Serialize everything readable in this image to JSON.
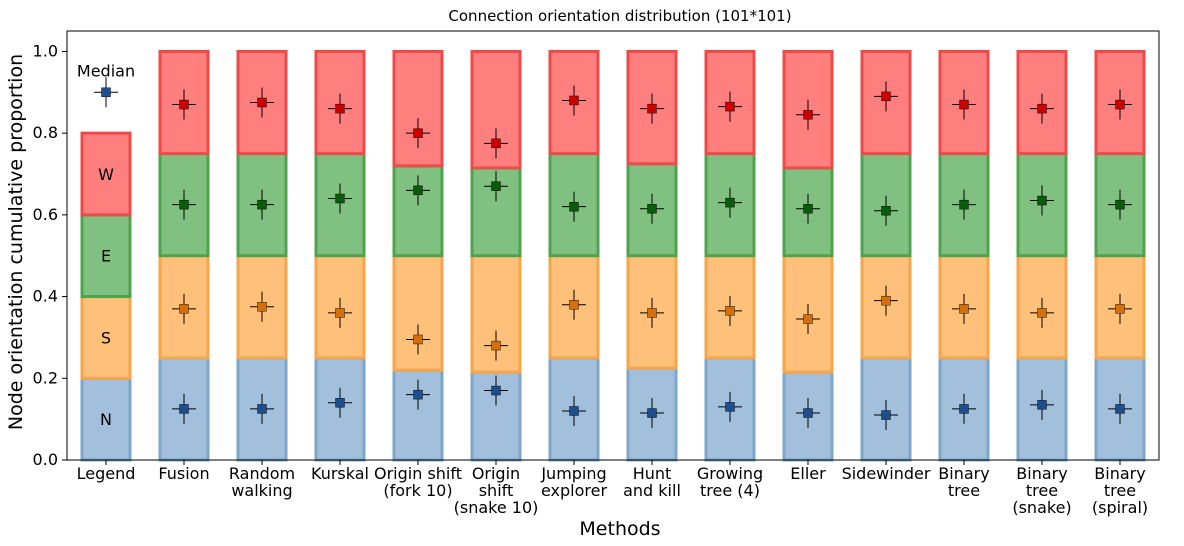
{
  "chart_data": {
    "type": "bar",
    "title": "Connection orientation distribution (101*101)",
    "xlabel": "Methods",
    "ylabel": "Node orientation cumulative proportion",
    "ylim": [
      0,
      1.05
    ],
    "yticks": [
      "0.0",
      "0.2",
      "0.4",
      "0.6",
      "0.8",
      "1.0"
    ],
    "stacked": true,
    "legend_column": {
      "category": "Legend",
      "median_label": "Median",
      "median_y": 0.9,
      "segments": [
        {
          "name": "N",
          "bottom": 0.0,
          "top": 0.2
        },
        {
          "name": "S",
          "bottom": 0.2,
          "top": 0.4
        },
        {
          "name": "E",
          "bottom": 0.4,
          "top": 0.6
        },
        {
          "name": "W",
          "bottom": 0.6,
          "top": 0.8
        }
      ]
    },
    "categories": [
      [
        "Fusion"
      ],
      [
        "Random",
        "walking"
      ],
      [
        "Kurskal"
      ],
      [
        "Origin shift",
        "(fork 10)"
      ],
      [
        "Origin",
        "shift",
        "(snake 10)"
      ],
      [
        "Jumping",
        "explorer"
      ],
      [
        "Hunt",
        "and kill"
      ],
      [
        "Growing",
        "tree (4)"
      ],
      [
        "Eller"
      ],
      [
        "Sidewinder"
      ],
      [
        "Binary",
        "tree"
      ],
      [
        "Binary",
        "tree",
        "(snake)"
      ],
      [
        "Binary",
        "tree",
        "(spiral)"
      ]
    ],
    "series": [
      {
        "name": "N",
        "color": "#a2bfdb",
        "edge": "#7ea6cb",
        "marker": "#1f4e8c",
        "cumulative_top": [
          0.25,
          0.25,
          0.25,
          0.22,
          0.215,
          0.25,
          0.225,
          0.25,
          0.215,
          0.25,
          0.25,
          0.25,
          0.25
        ],
        "medians": [
          0.125,
          0.125,
          0.14,
          0.16,
          0.17,
          0.12,
          0.115,
          0.13,
          0.115,
          0.11,
          0.125,
          0.135,
          0.125
        ]
      },
      {
        "name": "S",
        "color": "#ffc07a",
        "edge": "#f5a54a",
        "marker": "#d4700a",
        "cumulative_top": [
          0.5,
          0.5,
          0.5,
          0.5,
          0.5,
          0.5,
          0.5,
          0.5,
          0.5,
          0.5,
          0.5,
          0.5,
          0.5
        ],
        "medians": [
          0.37,
          0.375,
          0.36,
          0.295,
          0.28,
          0.38,
          0.36,
          0.365,
          0.345,
          0.39,
          0.37,
          0.36,
          0.37
        ]
      },
      {
        "name": "E",
        "color": "#80c080",
        "edge": "#4fa34f",
        "marker": "#0a5c0a",
        "cumulative_top": [
          0.75,
          0.75,
          0.75,
          0.72,
          0.715,
          0.75,
          0.725,
          0.75,
          0.715,
          0.75,
          0.75,
          0.75,
          0.75
        ],
        "medians": [
          0.625,
          0.625,
          0.64,
          0.66,
          0.67,
          0.62,
          0.615,
          0.63,
          0.615,
          0.61,
          0.625,
          0.635,
          0.625
        ]
      },
      {
        "name": "W",
        "color": "#ff7f7f",
        "edge": "#ee4a4a",
        "marker": "#cc0000",
        "cumulative_top": [
          1.0,
          1.0,
          1.0,
          1.0,
          1.0,
          1.0,
          1.0,
          1.0,
          1.0,
          1.0,
          1.0,
          1.0,
          1.0
        ],
        "medians": [
          0.87,
          0.875,
          0.86,
          0.8,
          0.775,
          0.88,
          0.86,
          0.865,
          0.845,
          0.89,
          0.87,
          0.86,
          0.87
        ]
      }
    ]
  }
}
